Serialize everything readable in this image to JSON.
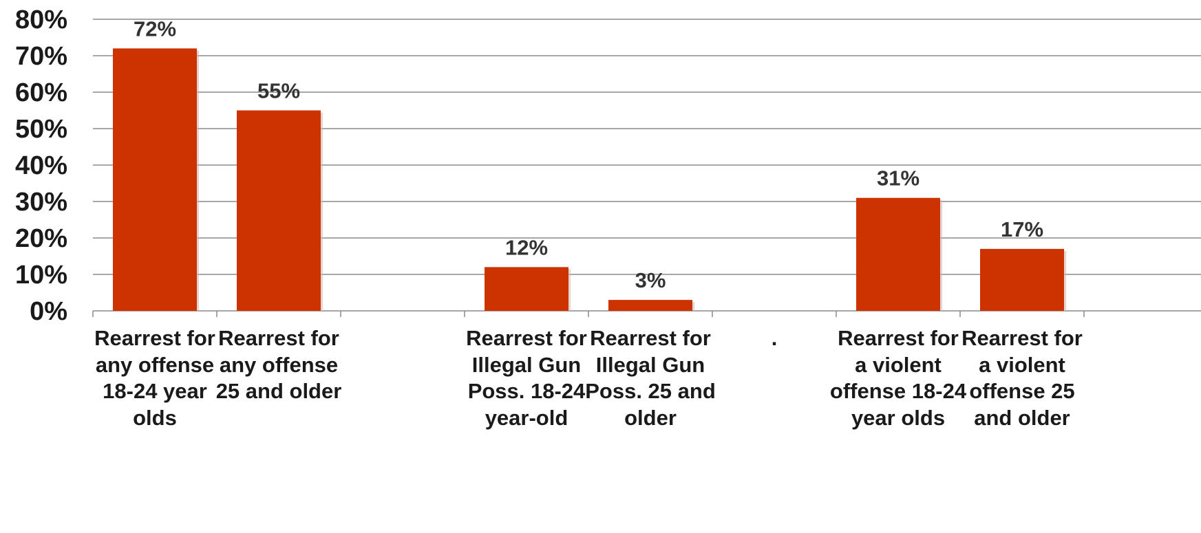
{
  "chart_data": {
    "type": "bar",
    "title": "",
    "xlabel": "",
    "ylabel": "",
    "ylim": [
      0,
      80
    ],
    "ytick_labels": [
      "0%",
      "10%",
      "20%",
      "30%",
      "40%",
      "50%",
      "60%",
      "70%",
      "80%"
    ],
    "grid": true,
    "bar_color": "#cc3300",
    "categories": [
      "Rearrest for any offense 18-24 year olds",
      "Rearrest for any offense 25 and older",
      "",
      "Rearrest for Illegal Gun Poss. 18-24 year-old",
      "Rearrest for Illegal Gun Poss. 25 and older",
      ".",
      "Rearrest for a violent offense 18-24 year olds",
      "Rearrest for a violent offense 25 and older"
    ],
    "values": [
      72,
      55,
      null,
      12,
      3,
      null,
      31,
      17
    ],
    "data_labels": [
      "72%",
      "55%",
      "",
      "12%",
      "3%",
      "",
      "31%",
      "17%"
    ]
  }
}
